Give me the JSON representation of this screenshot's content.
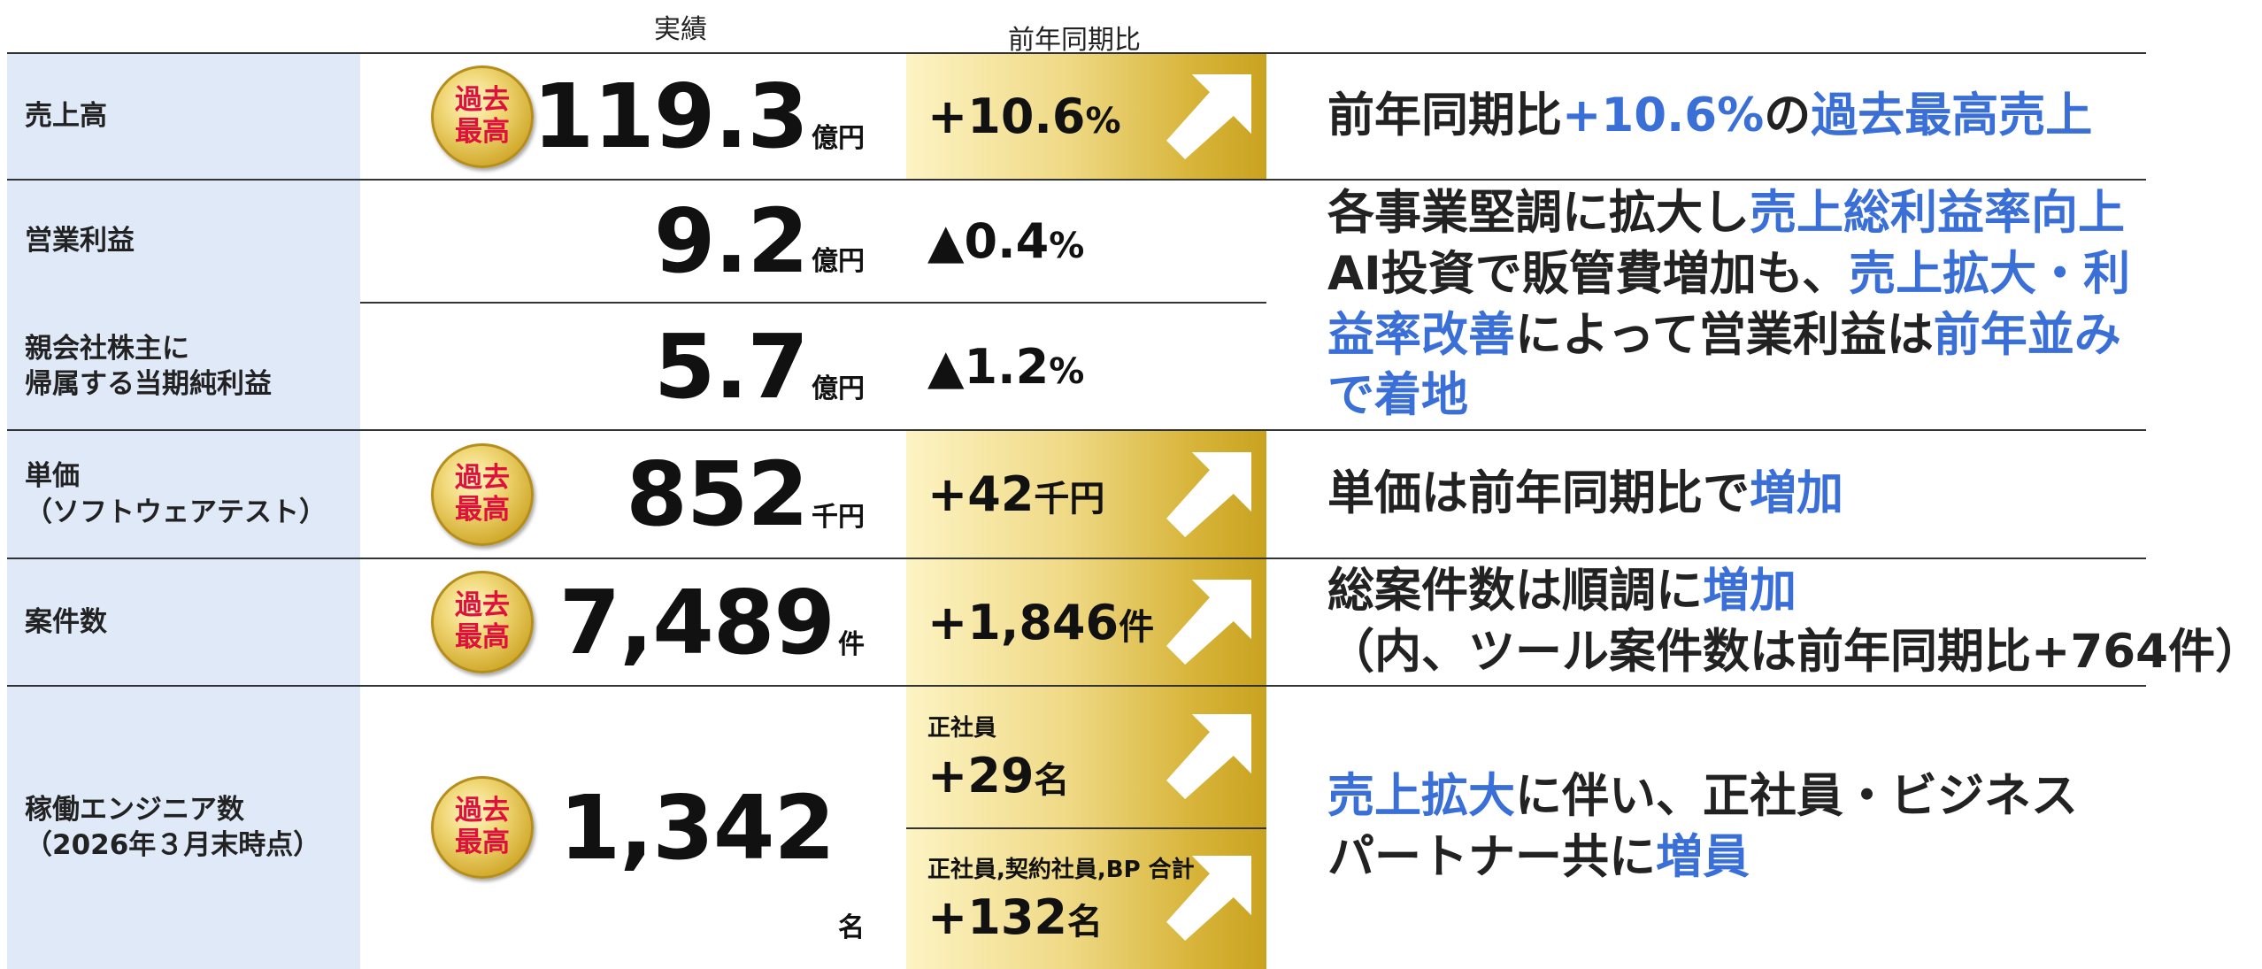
{
  "headers": {
    "result": "実績",
    "yoy": "前年同期比"
  },
  "rows": [
    {
      "label": [
        "売上高"
      ],
      "badge": [
        "過去",
        "最高"
      ],
      "value": "119.3",
      "unit": "億円",
      "change": [
        {
          "value": "+10.6",
          "unit": "%"
        }
      ],
      "arrow": true,
      "comment": [
        [
          {
            "text": "前年同期比",
            "color": "#222222"
          },
          {
            "text": "+10.6%",
            "color": "#3a6fd8"
          },
          {
            "text": "の",
            "color": "#222222"
          },
          {
            "text": "過去最高売上",
            "color": "#3a6fd8"
          }
        ]
      ]
    },
    {
      "label": [
        "営業利益"
      ],
      "value": "9.2",
      "unit": "億円",
      "change": [
        {
          "value": "▲0.4",
          "unit": "%"
        }
      ],
      "arrow": false,
      "comment": [
        [
          {
            "text": "各事業堅調に拡大し",
            "color": "#222222"
          },
          {
            "text": "売上総利益率向上",
            "color": "#3a6fd8"
          }
        ],
        [
          {
            "text": "AI投資で販管費増加も、",
            "color": "#222222"
          },
          {
            "text": "売上拡大・利",
            "color": "#3a6fd8"
          }
        ],
        [
          {
            "text": "益率改善",
            "color": "#3a6fd8"
          },
          {
            "text": "によって営業利益は",
            "color": "#222222"
          },
          {
            "text": "前年並み",
            "color": "#3a6fd8"
          }
        ],
        [
          {
            "text": "で着地",
            "color": "#3a6fd8"
          }
        ]
      ]
    },
    {
      "label": [
        "親会社株主に",
        "帰属する当期純利益"
      ],
      "value": "5.7",
      "unit": "億円",
      "change": [
        {
          "value": "▲1.2",
          "unit": "%"
        }
      ],
      "arrow": false
    },
    {
      "label": [
        "単価",
        "（ソフトウェアテスト）"
      ],
      "badge": [
        "過去",
        "最高"
      ],
      "value": "852",
      "unit": "千円",
      "change": [
        {
          "value": "+42",
          "unit": "千円"
        }
      ],
      "arrow": true,
      "comment": [
        [
          {
            "text": "単価は前年同期比で",
            "color": "#222222"
          },
          {
            "text": "増加",
            "color": "#3a6fd8"
          }
        ]
      ]
    },
    {
      "label": [
        "案件数"
      ],
      "badge": [
        "過去",
        "最高"
      ],
      "value": "7,489",
      "unit": "件",
      "change": [
        {
          "value": "+1,846",
          "unit": "件"
        }
      ],
      "arrow": true,
      "comment": [
        [
          {
            "text": "総案件数は順調に",
            "color": "#222222"
          },
          {
            "text": "増加",
            "color": "#3a6fd8"
          }
        ],
        [
          {
            "text": "（内、ツール案件数は前年同期比+764件）",
            "color": "#222222"
          }
        ]
      ]
    },
    {
      "label": [
        "稼働エンジニア数",
        "（2026年３月末時点）"
      ],
      "badge": [
        "過去",
        "最高"
      ],
      "value": "1,342",
      "unit": "名",
      "change": [
        {
          "label": "正社員",
          "value": "+29",
          "unit": "名"
        },
        {
          "label": "正社員,契約社員,BP 合計",
          "value": "+132",
          "unit": "名"
        }
      ],
      "arrow": true,
      "comment": [
        [
          {
            "text": "売上拡大",
            "color": "#3a6fd8"
          },
          {
            "text": "に伴い、正社員・ビジネス",
            "color": "#222222"
          }
        ],
        [
          {
            "text": "パートナー共に",
            "color": "#222222"
          },
          {
            "text": "増員",
            "color": "#3a6fd8"
          }
        ]
      ]
    }
  ]
}
